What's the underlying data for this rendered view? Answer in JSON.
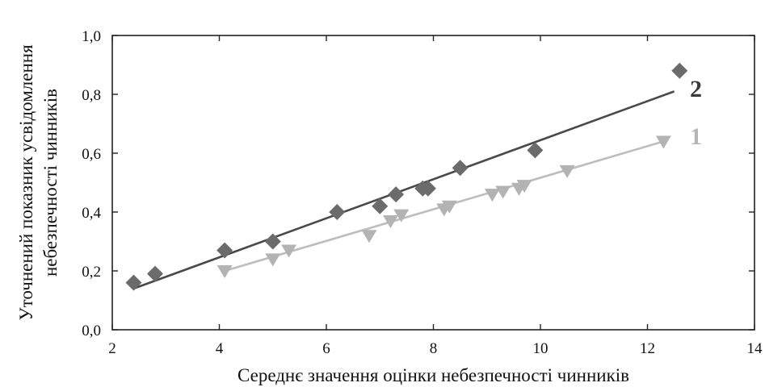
{
  "chart_data": {
    "type": "scatter",
    "xlabel": "Середнє значення оцінки небезпечності чинників",
    "ylabel": [
      "Уточнений показник усвідомлення",
      "небезпечності чинників"
    ],
    "xlim": [
      2,
      14
    ],
    "ylim": [
      0.0,
      1.0
    ],
    "xticks": [
      2,
      4,
      6,
      8,
      10,
      12,
      14
    ],
    "yticks": [
      0.0,
      0.2,
      0.4,
      0.6,
      0.8,
      1.0
    ],
    "xtick_labels": [
      "2",
      "4",
      "6",
      "8",
      "10",
      "12",
      "14"
    ],
    "ytick_labels": [
      "0,0",
      "0,2",
      "0,4",
      "0,6",
      "0,8",
      "1,0"
    ],
    "grid": false,
    "series": [
      {
        "name": "2",
        "marker": "diamond",
        "color": "#6b6b6b",
        "line_color": "#4a4a4a",
        "x": [
          2.4,
          2.8,
          4.1,
          5.0,
          6.2,
          7.0,
          7.3,
          7.8,
          7.9,
          8.5,
          9.9,
          12.6
        ],
        "y": [
          0.16,
          0.19,
          0.27,
          0.3,
          0.4,
          0.42,
          0.46,
          0.48,
          0.48,
          0.55,
          0.61,
          0.88
        ],
        "fit": {
          "x": [
            2.4,
            12.5
          ],
          "y": [
            0.14,
            0.81
          ]
        }
      },
      {
        "name": "1",
        "marker": "triangle-down",
        "color": "#b3b3b3",
        "line_color": "#bdbdbd",
        "x": [
          4.1,
          5.0,
          5.3,
          6.8,
          7.2,
          7.4,
          8.2,
          8.3,
          9.1,
          9.3,
          9.6,
          9.7,
          10.5,
          12.3
        ],
        "y": [
          0.2,
          0.24,
          0.27,
          0.32,
          0.37,
          0.39,
          0.41,
          0.42,
          0.46,
          0.47,
          0.48,
          0.49,
          0.54,
          0.64
        ],
        "fit": {
          "x": [
            4.1,
            12.3
          ],
          "y": [
            0.2,
            0.64
          ]
        }
      }
    ]
  }
}
